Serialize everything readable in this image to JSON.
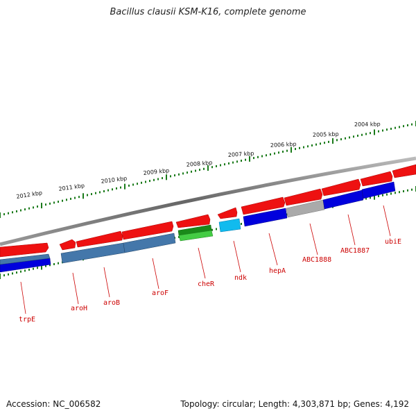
{
  "title": "Bacillus clausii KSM-K16, complete genome",
  "footer": {
    "accession": "Accession: NC_006582",
    "info": "Topology: circular; Length: 4,303,871 bp; Genes: 4,192"
  },
  "scale_labels": [
    "2012 kbp",
    "2011 kbp",
    "2010 kbp",
    "2009 kbp",
    "2008 kbp",
    "2007 kbp",
    "2006 kbp",
    "2005 kbp",
    "2004 kbp"
  ],
  "gene_labels": [
    "trpE",
    "aroH",
    "aroB",
    "aroF",
    "cheR",
    "ndk",
    "hepA",
    "ABC1888",
    "ABC1887",
    "ubiE"
  ],
  "colors": {
    "red": "#ee1111",
    "blue": "#0000dd",
    "steel": "#4477aa",
    "green": "#22aa22",
    "cyan": "#11bbee",
    "gray": "#aaaaaa",
    "backbone": "#777777",
    "ticks": "#1a7a1a",
    "leader": "#cc0000"
  }
}
